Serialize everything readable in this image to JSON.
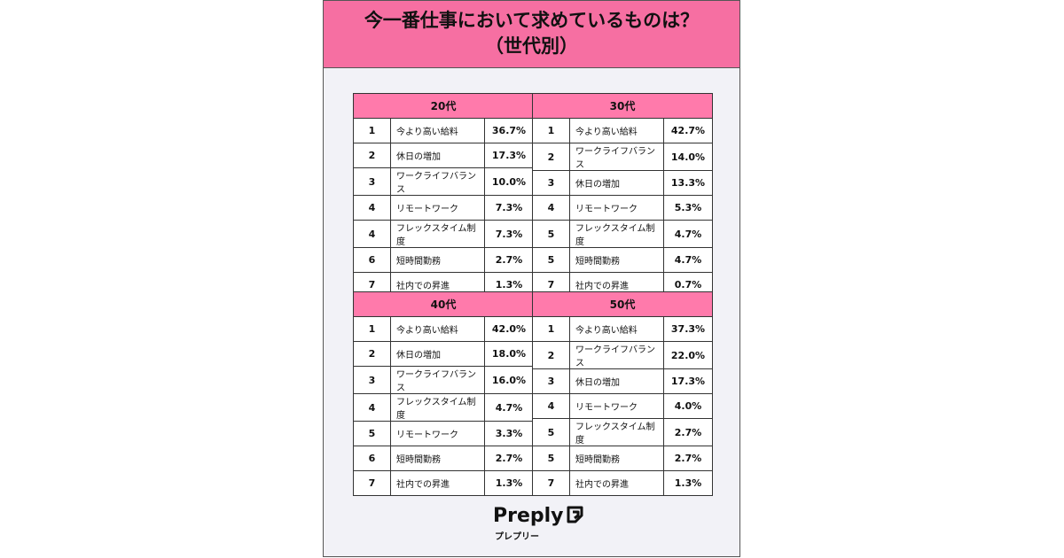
{
  "header": {
    "title_lines": [
      "今一番仕事において求めているものは？",
      "（世代別）"
    ]
  },
  "tables": [
    {
      "heading": "20代",
      "rows": [
        [
          "1",
          "今より高い給料",
          "36.7%"
        ],
        [
          "2",
          "休日の増加",
          "17.3%"
        ],
        [
          "3",
          "ワークライフバランス",
          "10.0%"
        ],
        [
          "4",
          "リモートワーク",
          "7.3%"
        ],
        [
          "4",
          "フレックスタイム制度",
          "7.3%"
        ],
        [
          "6",
          "短時間勤務",
          "2.7%"
        ],
        [
          "7",
          "社内での昇進",
          "1.3%"
        ]
      ]
    },
    {
      "heading": "30代",
      "rows": [
        [
          "1",
          "今より高い給料",
          "42.7%"
        ],
        [
          "2",
          "ワークライフバランス",
          "14.0%"
        ],
        [
          "3",
          "休日の増加",
          "13.3%"
        ],
        [
          "4",
          "リモートワーク",
          "5.3%"
        ],
        [
          "5",
          "フレックスタイム制度",
          "4.7%"
        ],
        [
          "5",
          "短時間勤務",
          "4.7%"
        ],
        [
          "7",
          "社内での昇進",
          "0.7%"
        ]
      ]
    },
    {
      "heading": "40代",
      "rows": [
        [
          "1",
          "今より高い給料",
          "42.0%"
        ],
        [
          "2",
          "休日の増加",
          "18.0%"
        ],
        [
          "3",
          "ワークライフバランス",
          "16.0%"
        ],
        [
          "4",
          "フレックスタイム制度",
          "4.7%"
        ],
        [
          "5",
          "リモートワーク",
          "3.3%"
        ],
        [
          "6",
          "短時間勤務",
          "2.7%"
        ],
        [
          "7",
          "社内での昇進",
          "1.3%"
        ]
      ]
    },
    {
      "heading": "50代",
      "rows": [
        [
          "1",
          "今より高い給料",
          "37.3%"
        ],
        [
          "2",
          "ワークライフバランス",
          "22.0%"
        ],
        [
          "3",
          "休日の増加",
          "17.3%"
        ],
        [
          "4",
          "リモートワーク",
          "4.0%"
        ],
        [
          "5",
          "フレックスタイム制度",
          "2.7%"
        ],
        [
          "5",
          "短時間勤務",
          "2.7%"
        ],
        [
          "7",
          "社内での昇進",
          "1.3%"
        ]
      ]
    }
  ],
  "footer": {
    "logo": "Preply",
    "logo_kana": "プレプリー"
  }
}
